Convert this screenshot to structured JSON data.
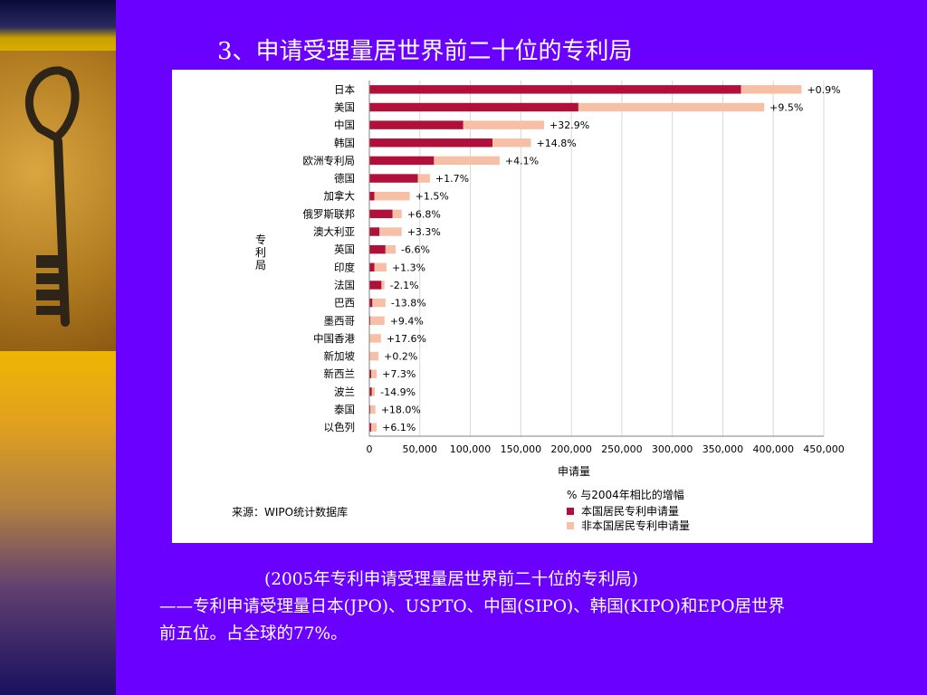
{
  "slide": {
    "title": "3、申请受理量居世界前二十位的专利局",
    "caption_line1": "(2005年专利申请受理量居世界前二十位的专利局)",
    "caption_line2": "——专利申请受理量日本(JPO)、USPTO、中国(SIPO)、韩国(KIPO)和EPO居世界",
    "caption_line3": "前五位。占全球的77%。"
  },
  "colors": {
    "background": "#6a00ff",
    "resident": "#b0103a",
    "non_resident": "#f7c0a6"
  },
  "chart_data": {
    "type": "bar",
    "orientation": "horizontal",
    "stacked": true,
    "ylabel": "专\n利\n局",
    "xlabel": "申请量",
    "xlim": [
      0,
      450000
    ],
    "x_ticks": [
      "0",
      "50,000",
      "100,000",
      "150,000",
      "200,000",
      "250,000",
      "300,000",
      "350,000",
      "400,000",
      "450,000"
    ],
    "grid": true,
    "source": "来源：WIPO统计数据库",
    "legend_title": "%  与2004年相比的增幅",
    "categories": [
      "日本",
      "美国",
      "中国",
      "韩国",
      "欧洲专利局",
      "德国",
      "加拿大",
      "俄罗斯联邦",
      "澳大利亚",
      "英国",
      "印度",
      "法国",
      "巴西",
      "墨西哥",
      "中国香港",
      "新加坡",
      "新西兰",
      "波兰",
      "泰国",
      "以色列"
    ],
    "growth_labels": [
      "+0.9%",
      "+9.5%",
      "+32.9%",
      "+14.8%",
      "+4.1%",
      "+1.7%",
      "+1.5%",
      "+6.8%",
      "+3.3%",
      "-6.6%",
      "+1.3%",
      "-2.1%",
      "-13.8%",
      "+9.4%",
      "+17.6%",
      "+0.2%",
      "+7.3%",
      "-14.9%",
      "+18.0%",
      "+6.1%"
    ],
    "series": [
      {
        "name": "本国居民专利申请量",
        "values": [
          368000,
          207000,
          93000,
          122000,
          64000,
          48000,
          5000,
          23000,
          10000,
          16000,
          5000,
          12000,
          3000,
          1000,
          500,
          600,
          1800,
          2500,
          1000,
          1800
        ]
      },
      {
        "name": "非本国居民专利申请量",
        "values": [
          60000,
          184000,
          80000,
          38000,
          65000,
          12000,
          35000,
          9000,
          22000,
          10000,
          12000,
          3000,
          13000,
          14000,
          11000,
          8500,
          5500,
          3000,
          5000,
          5500
        ]
      }
    ]
  }
}
